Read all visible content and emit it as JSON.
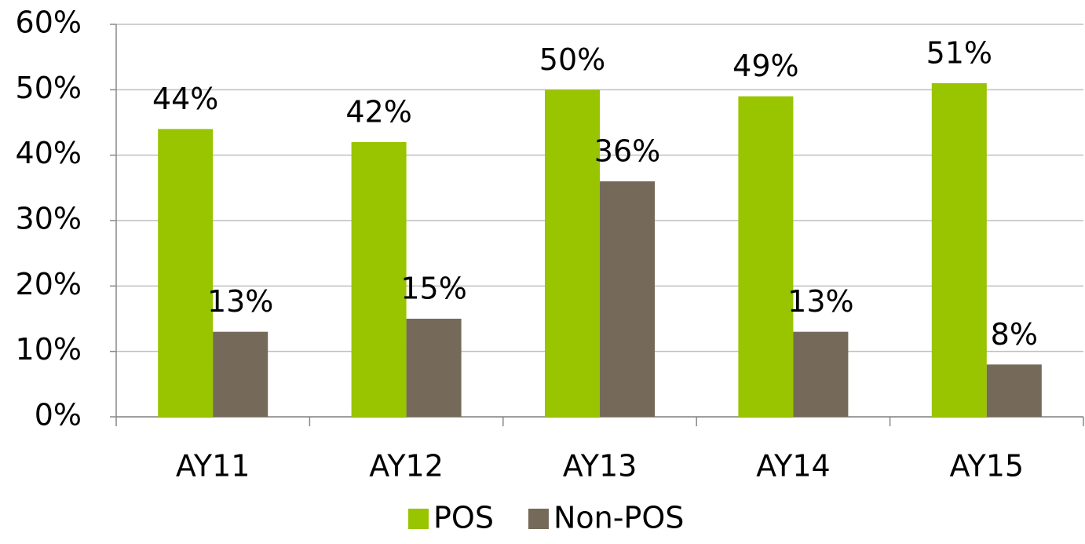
{
  "chart_data": {
    "type": "bar",
    "categories": [
      "AY11",
      "AY12",
      "AY13",
      "AY14",
      "AY15"
    ],
    "series": [
      {
        "name": "POS",
        "color": "#99c400",
        "values": [
          44,
          42,
          50,
          49,
          51
        ],
        "value_labels": [
          "44%",
          "42%",
          "50%",
          "49%",
          "51%"
        ]
      },
      {
        "name": "Non-POS",
        "color": "#75695a",
        "values": [
          13,
          15,
          36,
          13,
          8
        ],
        "value_labels": [
          "13%",
          "15%",
          "36%",
          "13%",
          "8%"
        ]
      }
    ],
    "ylim": [
      0,
      60
    ],
    "yticks": [
      {
        "value": 0,
        "label": "0%"
      },
      {
        "value": 10,
        "label": "10%"
      },
      {
        "value": 20,
        "label": "20%"
      },
      {
        "value": 30,
        "label": "30%"
      },
      {
        "value": 40,
        "label": "40%"
      },
      {
        "value": 50,
        "label": "50%"
      },
      {
        "value": 60,
        "label": "60%"
      }
    ],
    "grid": true,
    "legend": "bottom"
  }
}
